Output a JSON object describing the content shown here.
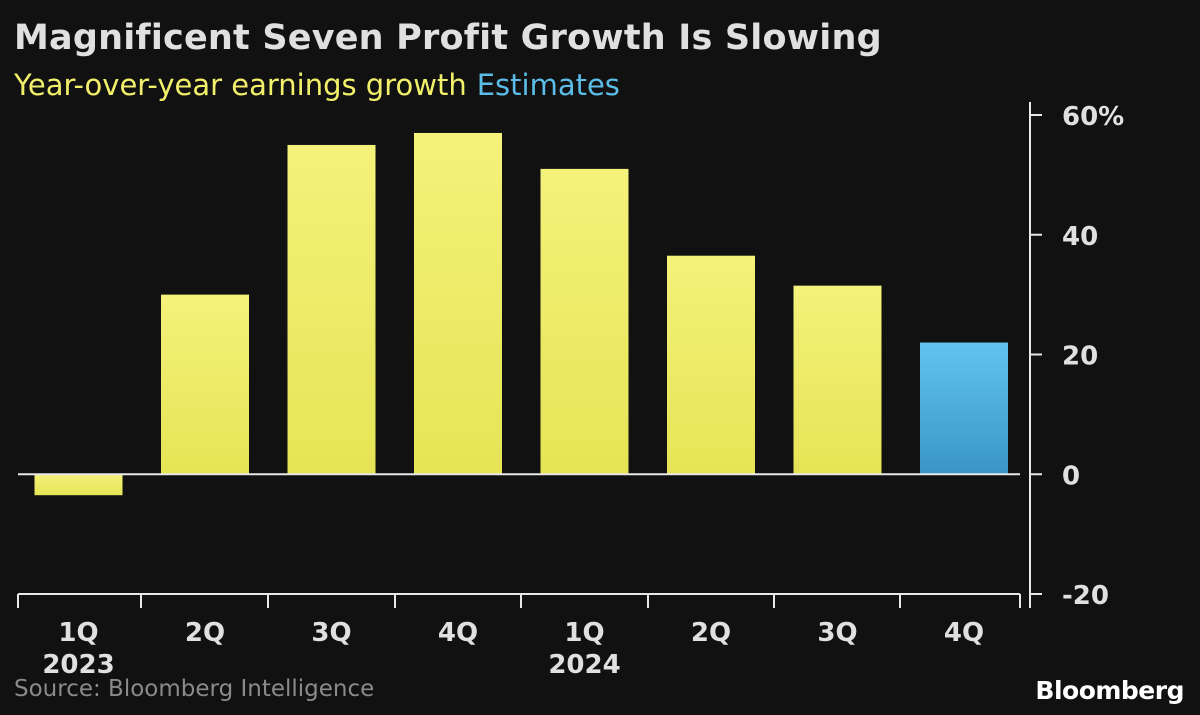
{
  "title": "Magnificent Seven Profit Growth Is Slowing",
  "subtitle": "Year-over-year earnings growth",
  "legend_estimates": "Estimates",
  "source": "Source: Bloomberg Intelligence",
  "brand": "Bloomberg",
  "colors": {
    "background": "#111111",
    "actual": "#f2f06a",
    "estimate": "#5bbde8",
    "axis": "#e0e0e0"
  },
  "chart_data": {
    "type": "bar",
    "title": "Magnificent Seven Profit Growth Is Slowing",
    "subtitle": "Year-over-year earnings growth",
    "categories": [
      "1Q",
      "2Q",
      "3Q",
      "4Q",
      "1Q",
      "2Q",
      "3Q",
      "4Q"
    ],
    "year_labels": [
      "2023",
      "",
      "",
      "",
      "2024",
      "",
      "",
      ""
    ],
    "values": [
      -3.5,
      30,
      55,
      57,
      51,
      36.5,
      31.5,
      22
    ],
    "estimate": [
      false,
      false,
      false,
      false,
      false,
      false,
      false,
      true
    ],
    "ylim": [
      -20,
      60
    ],
    "yticks": [
      60,
      40,
      20,
      0,
      -20
    ],
    "ytick_labels": [
      "60%",
      "40",
      "20",
      "0",
      "-20"
    ],
    "xlabel": "",
    "ylabel": "",
    "legend": [
      "Year-over-year earnings growth",
      "Estimates"
    ]
  }
}
